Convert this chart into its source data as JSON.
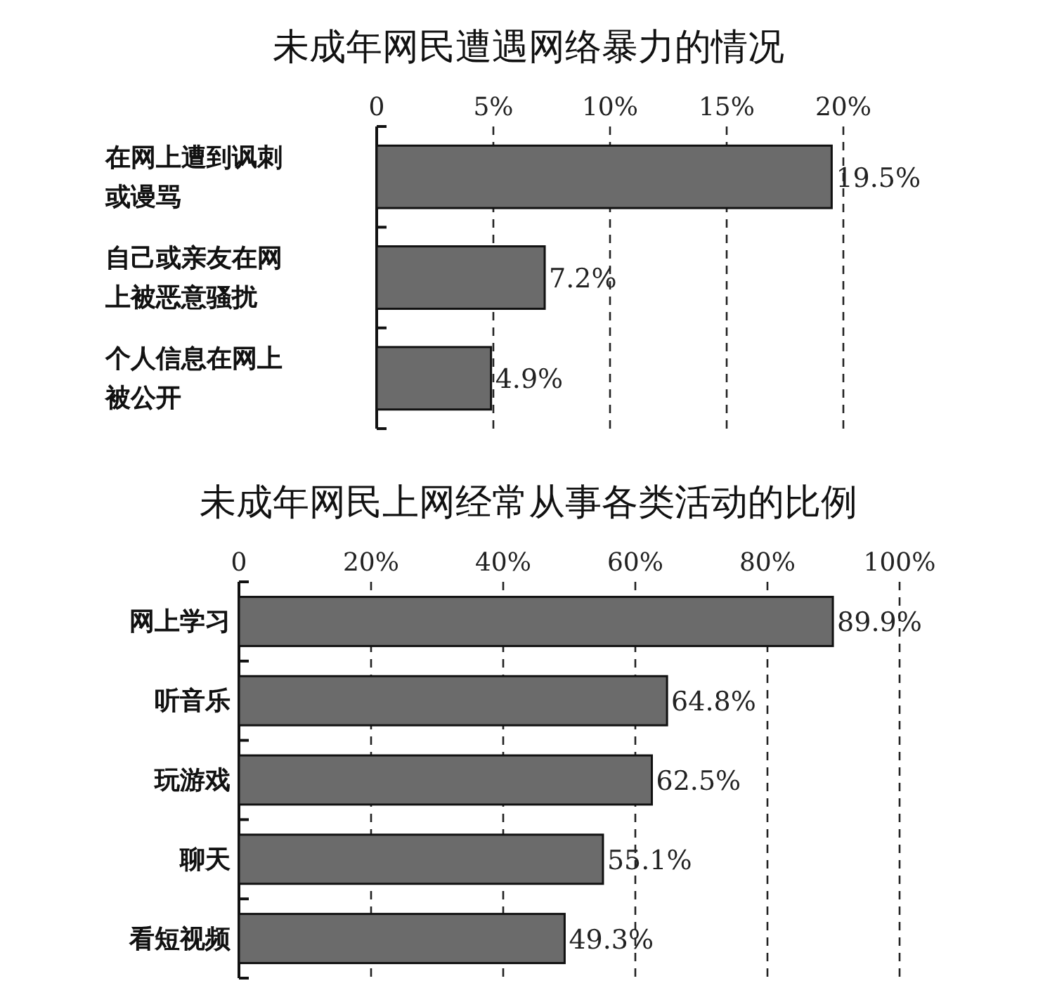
{
  "chart_data": [
    {
      "type": "bar",
      "orientation": "horizontal",
      "title": "未成年网民遭遇网络暴力的情况",
      "categories": [
        "在网上遭到讽刺或谩骂",
        "自己或亲友在网上被恶意骚扰",
        "个人信息在网上被公开"
      ],
      "values": [
        19.5,
        7.2,
        4.9
      ],
      "value_labels": [
        "19.5%",
        "7.2%",
        "4.9%"
      ],
      "color": "#6b6b6b",
      "xlim": [
        0,
        20
      ],
      "xticks": [
        0,
        {
          "value": 5,
          "label": "5%"
        },
        {
          "value": 10,
          "label": "10%"
        },
        {
          "value": 15,
          "label": "15%"
        },
        {
          "value": 20,
          "label": "20%"
        }
      ],
      "grid": "x"
    },
    {
      "type": "bar",
      "orientation": "horizontal",
      "title": "未成年网民上网经常从事各类活动的比例",
      "categories": [
        "网上学习",
        "听音乐",
        "玩游戏",
        "聊天",
        "看短视频"
      ],
      "values": [
        89.9,
        64.8,
        62.5,
        55.1,
        49.3
      ],
      "value_labels": [
        "89.9%",
        "64.8%",
        "62.5%",
        "55.1%",
        "49.3%"
      ],
      "color": "#6b6b6b",
      "xlim": [
        0,
        100
      ],
      "xticks": [
        0,
        {
          "value": 20,
          "label": "20%"
        },
        {
          "value": 40,
          "label": "40%"
        },
        {
          "value": 60,
          "label": "60%"
        },
        {
          "value": 80,
          "label": "80%"
        },
        {
          "value": 100,
          "label": "100%"
        }
      ],
      "grid": "x"
    }
  ]
}
